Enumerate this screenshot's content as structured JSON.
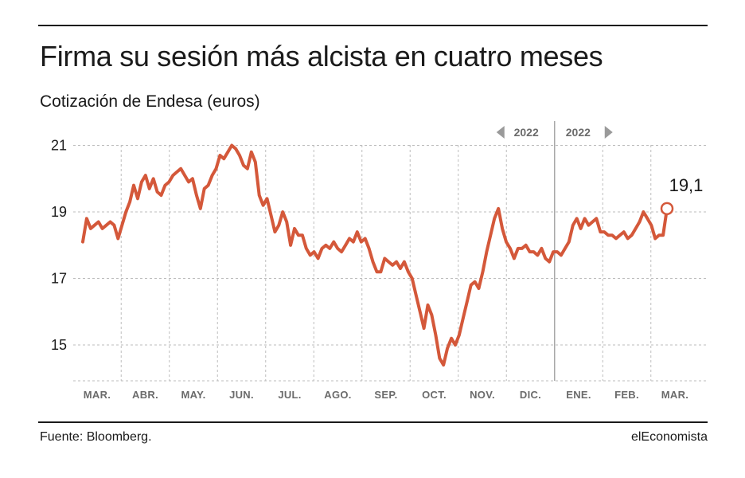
{
  "header": {
    "title": "Firma su sesión más alcista en cuatro meses",
    "subtitle": "Cotización de Endesa (euros)"
  },
  "footer": {
    "source": "Fuente: Bloomberg.",
    "brand": "elEconomista"
  },
  "colors": {
    "line": "#d4583a",
    "grid": "#bdbdbd",
    "divider": "#a8a8a8",
    "text": "#1a1a1a",
    "muted": "#6b6b6b"
  },
  "chart_data": {
    "type": "line",
    "title": "Firma su sesión más alcista en cuatro meses",
    "subtitle": "Cotización de Endesa (euros)",
    "xlabel": "",
    "ylabel": "",
    "ylim": [
      14,
      21.4
    ],
    "yticks": [
      15,
      17,
      19,
      21
    ],
    "ytick_labels": [
      "15",
      "17",
      "19",
      "21"
    ],
    "month_labels": [
      "MAR.",
      "ABR.",
      "MAY.",
      "JUN.",
      "JUL.",
      "AGO.",
      "SEP.",
      "OCT.",
      "NOV.",
      "DIC.",
      "ENE.",
      "FEB.",
      "MAR."
    ],
    "year_labels": [
      "2022",
      "2022"
    ],
    "year_split_month": 10,
    "grid": true,
    "last_value_label": "19,1",
    "series": [
      {
        "values": [
          18.1,
          18.8,
          18.5,
          18.6,
          18.7,
          18.5,
          18.6,
          18.7,
          18.6,
          18.2,
          18.6,
          19.0,
          19.3,
          19.8,
          19.4,
          19.9,
          20.1,
          19.7,
          20.0,
          19.6,
          19.5,
          19.8,
          19.9,
          20.1,
          20.2,
          20.3,
          20.1,
          19.9,
          20.0,
          19.5,
          19.1,
          19.7,
          19.8,
          20.1,
          20.3,
          20.7,
          20.6,
          20.8,
          21.0,
          20.9,
          20.7,
          20.4,
          20.3,
          20.8,
          20.5,
          19.5,
          19.2,
          19.4,
          18.9,
          18.4,
          18.6,
          19.0,
          18.7,
          18.0,
          18.5,
          18.3,
          18.3,
          17.9,
          17.7,
          17.8,
          17.6,
          17.9,
          18.0,
          17.9,
          18.1,
          17.9,
          17.8,
          18.0,
          18.2,
          18.1,
          18.4,
          18.1,
          18.2,
          17.9,
          17.5,
          17.2,
          17.2,
          17.6,
          17.5,
          17.4,
          17.5,
          17.3,
          17.5,
          17.2,
          17.0,
          16.5,
          16.0,
          15.5,
          16.2,
          15.9,
          15.3,
          14.6,
          14.4,
          14.9,
          15.2,
          15.0,
          15.3,
          15.8,
          16.3,
          16.8,
          16.9,
          16.7,
          17.2,
          17.8,
          18.3,
          18.8,
          19.1,
          18.5,
          18.1,
          17.9,
          17.6,
          17.9,
          17.9,
          18.0,
          17.8,
          17.8,
          17.7,
          17.9,
          17.6,
          17.5,
          17.8,
          17.8,
          17.7,
          17.9,
          18.1,
          18.6,
          18.8,
          18.5,
          18.8,
          18.6,
          18.7,
          18.8,
          18.4,
          18.4,
          18.3,
          18.3,
          18.2,
          18.3,
          18.4,
          18.2,
          18.3,
          18.5,
          18.7,
          19.0,
          18.8,
          18.6,
          18.2,
          18.3,
          18.3,
          19.1
        ]
      }
    ]
  }
}
